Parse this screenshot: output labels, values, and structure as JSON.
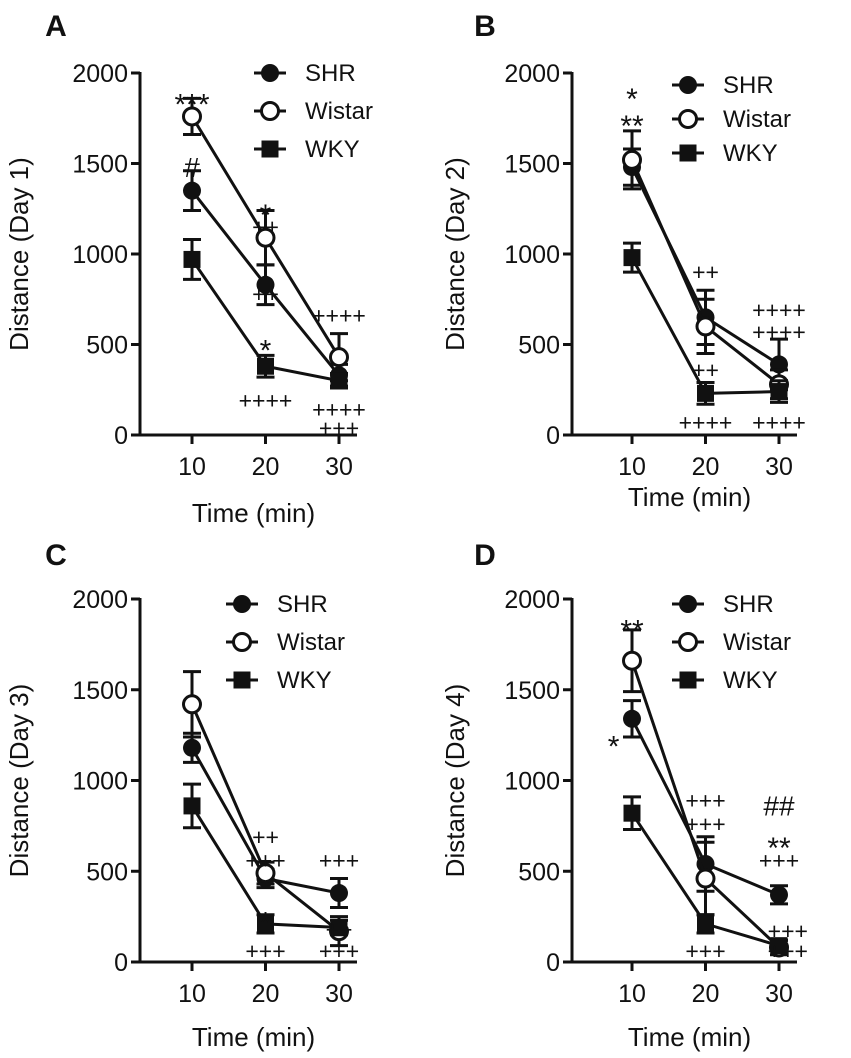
{
  "chart_data": [
    {
      "type": "line",
      "panel_label": "A",
      "xlabel": "Time (min)",
      "ylabel": "Distance (Day 1)",
      "categories": [
        10,
        20,
        30
      ],
      "ylim": [
        0,
        2000
      ],
      "yticks": [
        0,
        500,
        1000,
        1500,
        2000
      ],
      "legend_position": "top-right",
      "series": [
        {
          "name": "SHR",
          "marker": "filled-circle",
          "values": [
            1350,
            830,
            330
          ],
          "errors": [
            110,
            110,
            60
          ]
        },
        {
          "name": "Wistar",
          "marker": "open-circle",
          "values": [
            1760,
            1090,
            430
          ],
          "errors": [
            100,
            150,
            130
          ]
        },
        {
          "name": "WKY",
          "marker": "filled-square",
          "values": [
            970,
            380,
            300
          ],
          "errors": [
            110,
            60,
            40
          ]
        }
      ],
      "annotations": [
        {
          "text": "***",
          "x": 10,
          "y": 1860,
          "kind": "star"
        },
        {
          "text": "#",
          "x": 10,
          "y": 1470,
          "kind": "hash"
        },
        {
          "text": "*",
          "x": 20,
          "y": 1250,
          "kind": "star"
        },
        {
          "text": "++",
          "x": 20,
          "y": 1150,
          "kind": "plus"
        },
        {
          "text": "++",
          "x": 20,
          "y": 780,
          "kind": "plus"
        },
        {
          "text": "*",
          "x": 20,
          "y": 500,
          "kind": "star"
        },
        {
          "text": "++++",
          "x": 20,
          "y": 190,
          "kind": "plus"
        },
        {
          "text": "++++",
          "x": 30,
          "y": 660,
          "kind": "plus"
        },
        {
          "text": "++++",
          "x": 30,
          "y": 140,
          "kind": "plus"
        },
        {
          "text": "+++",
          "x": 30,
          "y": 40,
          "kind": "plus"
        }
      ]
    },
    {
      "type": "line",
      "panel_label": "B",
      "xlabel": "Time (min)",
      "ylabel": "Distance (Day 2)",
      "categories": [
        10,
        20,
        30
      ],
      "ylim": [
        0,
        2000
      ],
      "yticks": [
        0,
        500,
        1000,
        1500,
        2000
      ],
      "legend_position": "top-right",
      "series": [
        {
          "name": "SHR",
          "marker": "filled-circle",
          "values": [
            1480,
            650,
            390
          ],
          "errors": [
            100,
            150,
            140
          ]
        },
        {
          "name": "Wistar",
          "marker": "open-circle",
          "values": [
            1520,
            600,
            280
          ],
          "errors": [
            160,
            150,
            80
          ]
        },
        {
          "name": "WKY",
          "marker": "filled-square",
          "values": [
            980,
            230,
            240
          ],
          "errors": [
            80,
            60,
            60
          ]
        }
      ],
      "annotations": [
        {
          "text": "*",
          "x": 10,
          "y": 1890,
          "kind": "star"
        },
        {
          "text": "**",
          "x": 10,
          "y": 1740,
          "kind": "star"
        },
        {
          "text": "++",
          "x": 20,
          "y": 900,
          "kind": "plus"
        },
        {
          "text": "++",
          "x": 20,
          "y": 360,
          "kind": "plus"
        },
        {
          "text": "++++",
          "x": 20,
          "y": 70,
          "kind": "plus"
        },
        {
          "text": "++++",
          "x": 30,
          "y": 690,
          "kind": "plus"
        },
        {
          "text": "++++",
          "x": 30,
          "y": 570,
          "kind": "plus"
        },
        {
          "text": "++++",
          "x": 30,
          "y": 70,
          "kind": "plus"
        }
      ]
    },
    {
      "type": "line",
      "panel_label": "C",
      "xlabel": "Time (min)",
      "ylabel": "Distance (Day 3)",
      "categories": [
        10,
        20,
        30
      ],
      "ylim": [
        0,
        2000
      ],
      "yticks": [
        0,
        500,
        1000,
        1500,
        2000
      ],
      "legend_position": "top-right",
      "series": [
        {
          "name": "SHR",
          "marker": "filled-circle",
          "values": [
            1180,
            460,
            380
          ],
          "errors": [
            80,
            50,
            80
          ]
        },
        {
          "name": "Wistar",
          "marker": "open-circle",
          "values": [
            1420,
            490,
            170
          ],
          "errors": [
            180,
            60,
            80
          ]
        },
        {
          "name": "WKY",
          "marker": "filled-square",
          "values": [
            860,
            210,
            190
          ],
          "errors": [
            120,
            50,
            40
          ]
        }
      ],
      "annotations": [
        {
          "text": "++",
          "x": 20,
          "y": 690,
          "kind": "plus"
        },
        {
          "text": "+++",
          "x": 20,
          "y": 560,
          "kind": "plus"
        },
        {
          "text": "*",
          "x": 20,
          "y": 250,
          "kind": "star"
        },
        {
          "text": "+++",
          "x": 20,
          "y": 60,
          "kind": "plus"
        },
        {
          "text": "+++",
          "x": 30,
          "y": 560,
          "kind": "plus"
        },
        {
          "text": "++",
          "x": 30,
          "y": 180,
          "kind": "plus"
        },
        {
          "text": "+++",
          "x": 30,
          "y": 60,
          "kind": "plus"
        }
      ]
    },
    {
      "type": "line",
      "panel_label": "D",
      "xlabel": "Time (min)",
      "ylabel": "Distance (Day 4)",
      "categories": [
        10,
        20,
        30
      ],
      "ylim": [
        0,
        2000
      ],
      "yticks": [
        0,
        500,
        1000,
        1500,
        2000
      ],
      "legend_position": "top-right",
      "series": [
        {
          "name": "SHR",
          "marker": "filled-circle",
          "values": [
            1340,
            540,
            370
          ],
          "errors": [
            100,
            150,
            50
          ]
        },
        {
          "name": "Wistar",
          "marker": "open-circle",
          "values": [
            1660,
            460,
            80
          ],
          "errors": [
            170,
            200,
            40
          ]
        },
        {
          "name": "WKY",
          "marker": "filled-square",
          "values": [
            820,
            210,
            90
          ],
          "errors": [
            90,
            50,
            30
          ]
        }
      ],
      "annotations": [
        {
          "text": "**",
          "x": 10,
          "y": 1860,
          "kind": "star"
        },
        {
          "text": "*",
          "x": 7.5,
          "y": 1220,
          "kind": "star"
        },
        {
          "text": "+++",
          "x": 20,
          "y": 890,
          "kind": "plus"
        },
        {
          "text": "+++",
          "x": 20,
          "y": 760,
          "kind": "plus"
        },
        {
          "text": "+++",
          "x": 20,
          "y": 60,
          "kind": "plus"
        },
        {
          "text": "##",
          "x": 30,
          "y": 850,
          "kind": "hash"
        },
        {
          "text": "**",
          "x": 30,
          "y": 660,
          "kind": "star"
        },
        {
          "text": "+++",
          "x": 30,
          "y": 560,
          "kind": "plus"
        },
        {
          "text": "+++",
          "x": 31.2,
          "y": 170,
          "kind": "plus"
        },
        {
          "text": "+++",
          "x": 31.2,
          "y": 60,
          "kind": "plus"
        }
      ]
    }
  ]
}
